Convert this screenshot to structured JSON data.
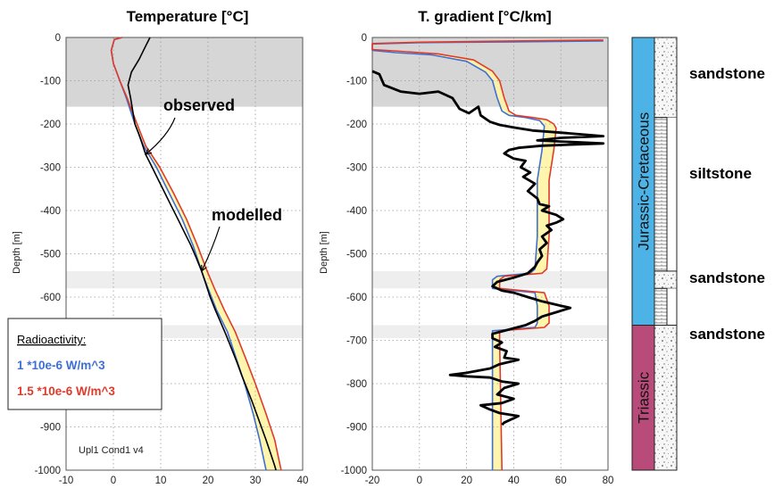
{
  "chart_data": [
    {
      "type": "line",
      "title": "Temperature [°C]",
      "xlabel": "",
      "ylabel": "Depth [m]",
      "xlim": [
        -15,
        40
      ],
      "ylim": [
        -1000,
        0
      ],
      "xticks": [
        "-10",
        "0",
        "10",
        "20",
        "30",
        "40"
      ],
      "yticks": [
        "0",
        "-100",
        "-200",
        "-300",
        "-400",
        "-500",
        "-600",
        "-700",
        "-800",
        "-900",
        "-1000"
      ],
      "grid": true,
      "note": "Upl1 Cond1 v4",
      "annotations": [
        {
          "text": "observed",
          "arrow_to": [
            3.5,
            -270
          ]
        },
        {
          "text": "modelled",
          "arrow_to": [
            16.5,
            -540
          ]
        }
      ],
      "series": [
        {
          "name": "observed",
          "color": "#000000",
          "points": [
            [
              4.5,
              0
            ],
            [
              3.5,
              -20
            ],
            [
              2,
              -50
            ],
            [
              0.2,
              -80
            ],
            [
              -0.6,
              -110
            ],
            [
              0,
              -140
            ],
            [
              0.5,
              -170
            ],
            [
              1,
              -200
            ],
            [
              1.8,
              -220
            ],
            [
              2.5,
              -240
            ],
            [
              3.5,
              -270
            ],
            [
              5,
              -300
            ],
            [
              6.5,
              -330
            ],
            [
              8,
              -360
            ],
            [
              9.5,
              -390
            ],
            [
              11,
              -420
            ],
            [
              12.5,
              -450
            ],
            [
              14,
              -480
            ],
            [
              15.3,
              -510
            ],
            [
              16.5,
              -540
            ],
            [
              17.5,
              -570
            ],
            [
              18.5,
              -600
            ],
            [
              19.7,
              -630
            ],
            [
              21,
              -660
            ],
            [
              22.3,
              -690
            ],
            [
              23.5,
              -720
            ],
            [
              24.7,
              -750
            ],
            [
              25.8,
              -780
            ],
            [
              27,
              -810
            ],
            [
              28.2,
              -840
            ],
            [
              29.3,
              -870
            ],
            [
              30.4,
              -900
            ],
            [
              31.5,
              -930
            ],
            [
              32.5,
              -960
            ],
            [
              33.5,
              -990
            ],
            [
              33.8,
              -1000
            ]
          ]
        },
        {
          "name": "1 *10e-6 W/m^3",
          "color": "#3d6fd4",
          "points": [
            [
              -2,
              0
            ],
            [
              -3.8,
              -5
            ],
            [
              -4.5,
              -30
            ],
            [
              -4,
              -60
            ],
            [
              -2.5,
              -100
            ],
            [
              -1,
              -140
            ],
            [
              1,
              -200
            ],
            [
              3,
              -250
            ],
            [
              6,
              -300
            ],
            [
              9,
              -360
            ],
            [
              12,
              -420
            ],
            [
              14.5,
              -480
            ],
            [
              16.5,
              -540
            ],
            [
              18,
              -580
            ],
            [
              20,
              -630
            ],
            [
              22.5,
              -680
            ],
            [
              24.5,
              -740
            ],
            [
              26.5,
              -800
            ],
            [
              28.5,
              -870
            ],
            [
              30,
              -930
            ],
            [
              31.5,
              -1000
            ]
          ]
        },
        {
          "name": "1.5 *10e-6 W/m^3",
          "color": "#e03a2a",
          "points": [
            [
              -2,
              0
            ],
            [
              -3.8,
              -5
            ],
            [
              -4.5,
              -30
            ],
            [
              -4,
              -60
            ],
            [
              -2.5,
              -100
            ],
            [
              -0.8,
              -140
            ],
            [
              1.5,
              -200
            ],
            [
              3.5,
              -250
            ],
            [
              6.8,
              -300
            ],
            [
              10,
              -360
            ],
            [
              13,
              -420
            ],
            [
              15.5,
              -480
            ],
            [
              17.8,
              -540
            ],
            [
              19.5,
              -580
            ],
            [
              21.8,
              -630
            ],
            [
              24.3,
              -680
            ],
            [
              26.7,
              -740
            ],
            [
              29,
              -800
            ],
            [
              31.5,
              -870
            ],
            [
              33.5,
              -930
            ],
            [
              35,
              -1000
            ]
          ]
        }
      ]
    },
    {
      "type": "line",
      "title": "T. gradient [°C/km]",
      "xlabel": "",
      "ylabel": "Depth [m]",
      "xlim": [
        -20,
        80
      ],
      "ylim": [
        -1000,
        0
      ],
      "xticks": [
        "-20",
        "0",
        "20",
        "40",
        "60",
        "80"
      ],
      "yticks": [
        "0",
        "-100",
        "-200",
        "-300",
        "-400",
        "-500",
        "-600",
        "-700",
        "-800",
        "-900",
        "-1000"
      ],
      "grid": true,
      "series": [
        {
          "name": "observed",
          "color": "#000000",
          "points": [
            [
              -20,
              -78
            ],
            [
              -17,
              -85
            ],
            [
              -15,
              -110
            ],
            [
              -8,
              -125
            ],
            [
              0,
              -130
            ],
            [
              8,
              -125
            ],
            [
              14,
              -140
            ],
            [
              17,
              -165
            ],
            [
              21,
              -175
            ],
            [
              25,
              -160
            ],
            [
              26,
              -180
            ],
            [
              30,
              -195
            ],
            [
              34,
              -202
            ],
            [
              40,
              -208
            ],
            [
              48,
              -215
            ],
            [
              60,
              -220
            ],
            [
              78,
              -228
            ],
            [
              60,
              -232
            ],
            [
              50,
              -238
            ],
            [
              78,
              -245
            ],
            [
              52,
              -250
            ],
            [
              42,
              -255
            ],
            [
              38,
              -260
            ],
            [
              36,
              -268
            ],
            [
              40,
              -280
            ],
            [
              45,
              -285
            ],
            [
              43,
              -300
            ],
            [
              47,
              -312
            ],
            [
              44,
              -322
            ],
            [
              49,
              -338
            ],
            [
              46,
              -355
            ],
            [
              50,
              -372
            ],
            [
              51,
              -385
            ],
            [
              55,
              -390
            ],
            [
              52,
              -400
            ],
            [
              58,
              -410
            ],
            [
              61,
              -420
            ],
            [
              58,
              -428
            ],
            [
              54,
              -435
            ],
            [
              56,
              -445
            ],
            [
              52,
              -460
            ],
            [
              54,
              -475
            ],
            [
              51,
              -490
            ],
            [
              52,
              -505
            ],
            [
              50,
              -520
            ],
            [
              49,
              -530
            ],
            [
              46,
              -545
            ],
            [
              40,
              -555
            ],
            [
              33,
              -565
            ],
            [
              31,
              -575
            ],
            [
              35,
              -585
            ],
            [
              40,
              -590
            ],
            [
              46,
              -600
            ],
            [
              52,
              -610
            ],
            [
              60,
              -620
            ],
            [
              64,
              -625
            ],
            [
              58,
              -635
            ],
            [
              52,
              -645
            ],
            [
              49,
              -655
            ],
            [
              45,
              -665
            ],
            [
              38,
              -675
            ],
            [
              31,
              -685
            ],
            [
              31,
              -695
            ],
            [
              35,
              -705
            ],
            [
              32,
              -715
            ],
            [
              37,
              -725
            ],
            [
              36,
              -740
            ],
            [
              42,
              -745
            ],
            [
              34,
              -755
            ],
            [
              30,
              -765
            ],
            [
              20,
              -775
            ],
            [
              13,
              -780
            ],
            [
              20,
              -783
            ],
            [
              30,
              -786
            ],
            [
              35,
              -795
            ],
            [
              42,
              -800
            ],
            [
              36,
              -810
            ],
            [
              33,
              -825
            ],
            [
              40,
              -835
            ],
            [
              35,
              -845
            ],
            [
              26,
              -850
            ],
            [
              30,
              -860
            ],
            [
              34,
              -868
            ],
            [
              42,
              -875
            ],
            [
              38,
              -885
            ],
            [
              36,
              -890
            ],
            [
              35,
              -895
            ]
          ]
        },
        {
          "name": "1 *10e-6 W/m^3",
          "color": "#3d6fd4",
          "points": [
            [
              78,
              -8
            ],
            [
              40,
              -10
            ],
            [
              0,
              -12
            ],
            [
              -20,
              -15
            ],
            [
              -20,
              -30
            ],
            [
              -10,
              -35
            ],
            [
              5,
              -40
            ],
            [
              20,
              -55
            ],
            [
              28,
              -80
            ],
            [
              31,
              -100
            ],
            [
              33,
              -140
            ],
            [
              35,
              -170
            ],
            [
              38,
              -180
            ],
            [
              45,
              -185
            ],
            [
              51,
              -192
            ],
            [
              53,
              -205
            ],
            [
              52,
              -260
            ],
            [
              50,
              -330
            ],
            [
              50,
              -460
            ],
            [
              49,
              -535
            ],
            [
              47,
              -545
            ],
            [
              33,
              -552
            ],
            [
              31,
              -560
            ],
            [
              31,
              -580
            ],
            [
              49,
              -590
            ],
            [
              50,
              -620
            ],
            [
              50,
              -660
            ],
            [
              49,
              -670
            ],
            [
              31,
              -678
            ],
            [
              31,
              -700
            ],
            [
              31,
              -1000
            ]
          ]
        },
        {
          "name": "1.5 *10e-6 W/m^3",
          "color": "#e03a2a",
          "points": [
            [
              78,
              -6
            ],
            [
              40,
              -8
            ],
            [
              0,
              -11
            ],
            [
              -20,
              -14
            ],
            [
              -20,
              -28
            ],
            [
              -8,
              -32
            ],
            [
              8,
              -38
            ],
            [
              23,
              -52
            ],
            [
              31,
              -78
            ],
            [
              34,
              -100
            ],
            [
              36,
              -140
            ],
            [
              38,
              -170
            ],
            [
              41,
              -180
            ],
            [
              48,
              -185
            ],
            [
              54,
              -190
            ],
            [
              57,
              -200
            ],
            [
              58,
              -210
            ],
            [
              57,
              -260
            ],
            [
              55,
              -330
            ],
            [
              55,
              -460
            ],
            [
              54,
              -535
            ],
            [
              52,
              -545
            ],
            [
              36,
              -552
            ],
            [
              34,
              -560
            ],
            [
              34,
              -580
            ],
            [
              53,
              -590
            ],
            [
              55,
              -620
            ],
            [
              55,
              -660
            ],
            [
              53,
              -670
            ],
            [
              34,
              -678
            ],
            [
              34,
              -700
            ],
            [
              35,
              -1000
            ]
          ]
        }
      ]
    }
  ],
  "gray_band": {
    "depth_top": 0,
    "depth_bottom": -160
  },
  "light_bands": [
    {
      "depth_top": -540,
      "depth_bottom": -580
    },
    {
      "depth_top": -665,
      "depth_bottom": -695
    }
  ],
  "legend": {
    "title": "Radioactivity:",
    "items": [
      {
        "label": "1 *10e-6  W/m^3",
        "color": "#3d6fd4"
      },
      {
        "label": "1.5 *10e-6  W/m^3",
        "color": "#e03a2a"
      }
    ]
  },
  "fill_color": "#fff4a3",
  "stratigraphy": {
    "periods": [
      {
        "name": "Jurassic-Cretaceous",
        "depth_top": 0,
        "depth_bottom": -665,
        "color": "#4db3e6"
      },
      {
        "name": "Triassic",
        "depth_top": -665,
        "depth_bottom": -1000,
        "color": "#b84b7a"
      }
    ],
    "lithology": [
      {
        "label": "sandstone",
        "depth_top": 0,
        "depth_bottom": -185,
        "pattern": "sand"
      },
      {
        "label": "siltstone",
        "depth_top": -185,
        "depth_bottom": -540,
        "pattern": "silt"
      },
      {
        "label": "sandstone",
        "depth_top": -540,
        "depth_bottom": -580,
        "pattern": "sand"
      },
      {
        "label": "",
        "depth_top": -580,
        "depth_bottom": -665,
        "pattern": "silt"
      },
      {
        "label": "sandstone",
        "depth_top": -665,
        "depth_bottom": -1000,
        "pattern": "sand"
      }
    ]
  }
}
